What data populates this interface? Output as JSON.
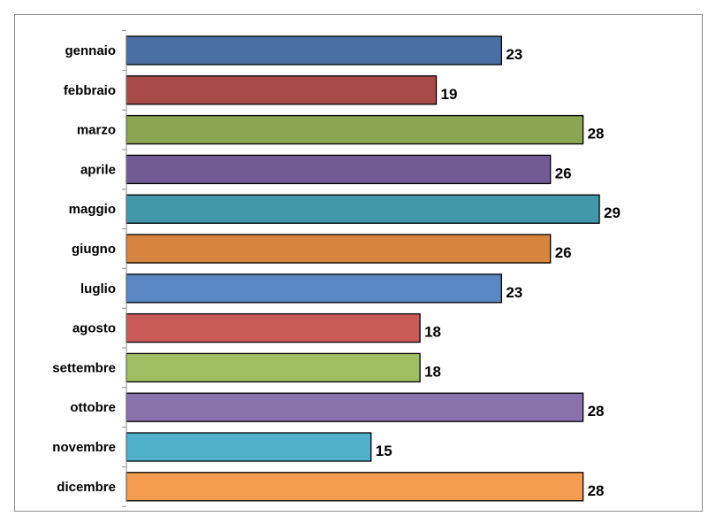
{
  "chart_data": {
    "type": "bar",
    "orientation": "horizontal",
    "categories": [
      "gennaio",
      "febbraio",
      "marzo",
      "aprile",
      "maggio",
      "giugno",
      "luglio",
      "agosto",
      "settembre",
      "ottobre",
      "novembre",
      "dicembre"
    ],
    "values": [
      23,
      19,
      28,
      26,
      29,
      26,
      23,
      18,
      18,
      28,
      15,
      28
    ],
    "colors": [
      "#4a6fa5",
      "#a84a48",
      "#8aa653",
      "#725a94",
      "#4298aa",
      "#d6843e",
      "#5b87c5",
      "#cb5a58",
      "#a0bf62",
      "#8a72ac",
      "#4fb0cb",
      "#f59c51"
    ],
    "title": "",
    "xlabel": "",
    "ylabel": "",
    "xlim": [
      0,
      29
    ],
    "grid": false,
    "legend": "none",
    "data_labels": true
  }
}
